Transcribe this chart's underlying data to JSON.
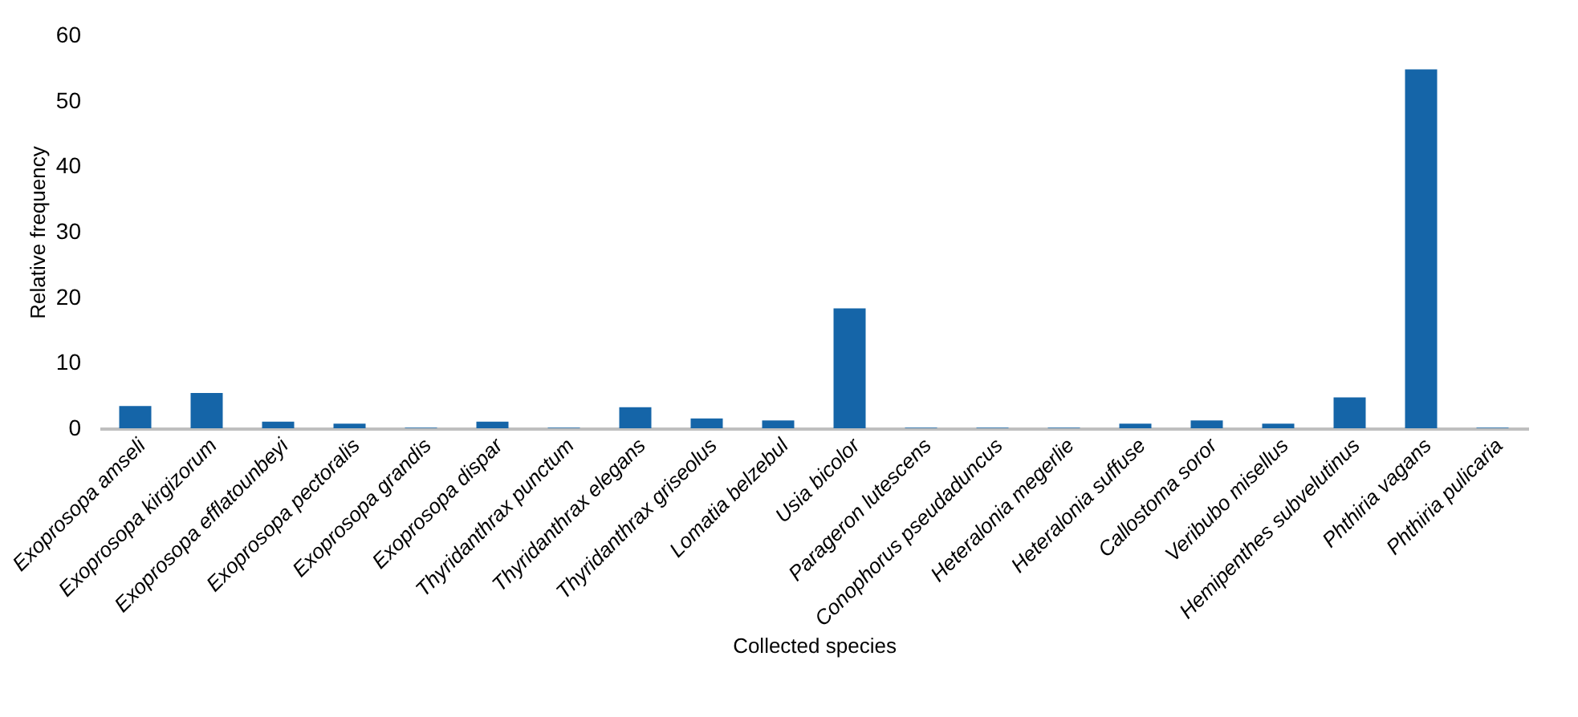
{
  "chart_data": {
    "type": "bar",
    "xlabel": "Collected species",
    "ylabel": "Relative frequency",
    "categories": [
      "Exoprosopa amseli",
      "Exoprosopa  kirgizorum",
      "Exoprosopa efflatounbeyi",
      "Exoprosopa  pectoralis",
      "Exoprosopa grandis",
      "Exoprosopa dispar",
      "Thyridanthrax punctum",
      "Thyridanthrax elegans",
      "Thyridanthrax  griseolus",
      "Lomatia belzebul",
      "Usia bicolor",
      "Parageron lutescens",
      "Conophorus pseudaduncus",
      "Heteralonia megerlie",
      "Heteralonia suffuse",
      "Callostoma soror",
      "Veribubo misellus",
      "Hemipenthes subvelutinus",
      "Phthiria vagans",
      "Phthiria pulicaria"
    ],
    "values": [
      3.4,
      5.4,
      1.0,
      0.7,
      0.1,
      1.0,
      0.1,
      3.2,
      1.5,
      1.2,
      18.3,
      0.1,
      0.1,
      0.1,
      0.7,
      1.2,
      0.7,
      4.7,
      54.8,
      0.1
    ],
    "color": "#1565a8",
    "ylim": [
      0,
      60
    ],
    "yticks": [
      0,
      10,
      20,
      30,
      40,
      50,
      60
    ],
    "grid": false
  }
}
